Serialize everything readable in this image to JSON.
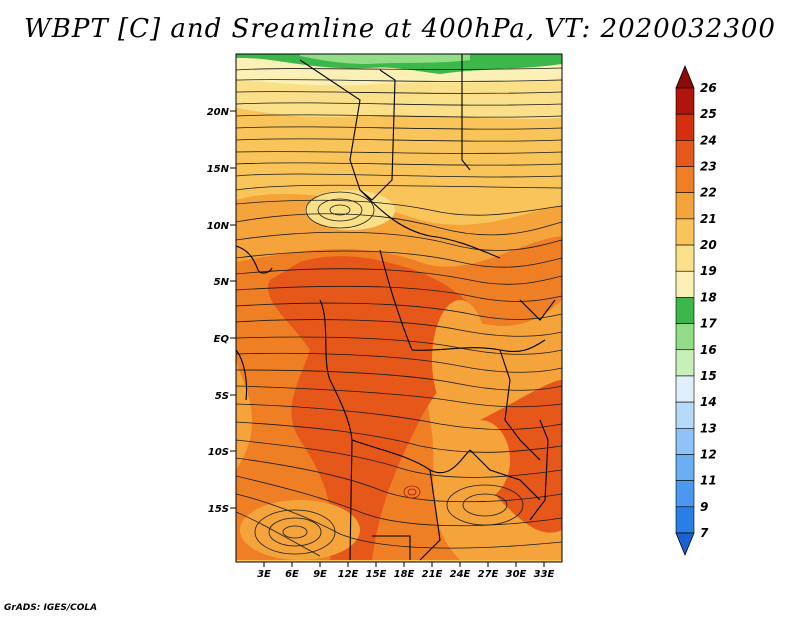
{
  "title": "WBPT [C] and Sreamline at 400hPa, VT: 2020032300",
  "credit": "GrADS: IGES/COLA",
  "map": {
    "lat_labels": [
      "20N",
      "15N",
      "10N",
      "5N",
      "EQ",
      "5S",
      "10S",
      "15S"
    ],
    "lon_labels": [
      "3E",
      "6E",
      "9E",
      "12E",
      "15E",
      "18E",
      "21E",
      "24E",
      "27E",
      "30E",
      "33E"
    ]
  },
  "colorbar": {
    "levels": [
      "7",
      "9",
      "11",
      "12",
      "13",
      "14",
      "15",
      "16",
      "17",
      "18",
      "19",
      "20",
      "21",
      "22",
      "23",
      "24",
      "25",
      "26"
    ],
    "colors": [
      "#1e5fd6",
      "#2a7fe6",
      "#4a98f0",
      "#6aaef4",
      "#8fc3f8",
      "#b6daf9",
      "#dff0fb",
      "#c9efb8",
      "#93dc88",
      "#3cb84a",
      "#fbf1b6",
      "#fbe08a",
      "#f9c45a",
      "#f4a43a",
      "#ef7f25",
      "#e6571a",
      "#d4300f",
      "#b0150b",
      "#8c0a08"
    ]
  }
}
